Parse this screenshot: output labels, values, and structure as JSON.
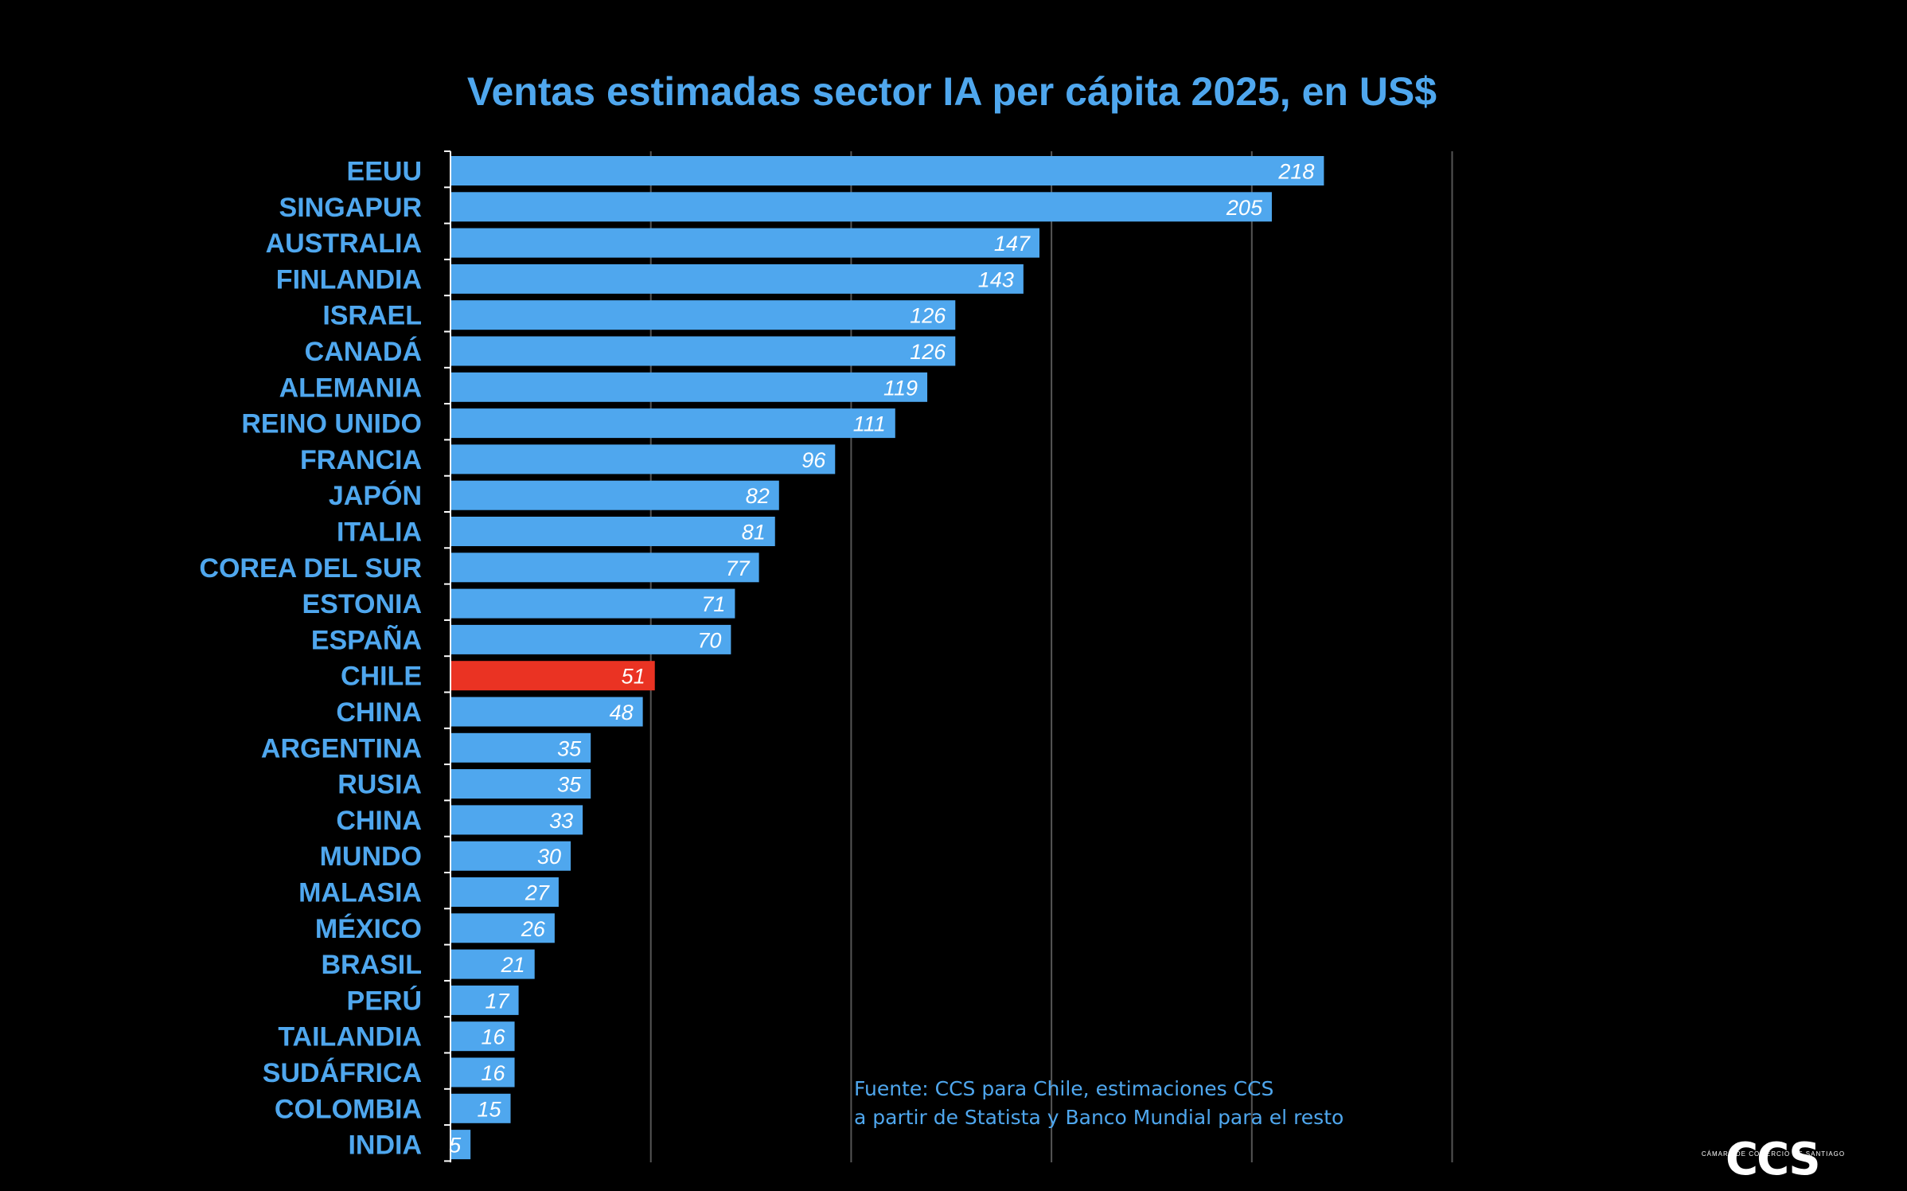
{
  "chart_data": {
    "type": "bar",
    "orientation": "horizontal",
    "title": "Ventas estimadas sector IA per cápita 2025, en US$",
    "categories": [
      "EEUU",
      "SINGAPUR",
      "AUSTRALIA",
      "FINLANDIA",
      "ISRAEL",
      "CANADÁ",
      "ALEMANIA",
      "REINO UNIDO",
      "FRANCIA",
      "JAPÓN",
      "ITALIA",
      "COREA DEL SUR",
      "ESTONIA",
      "ESPAÑA",
      "CHILE",
      "CHINA",
      "ARGENTINA",
      "RUSIA",
      "CHINA",
      "MUNDO",
      "MALASIA",
      "MÉXICO",
      "BRASIL",
      "PERÚ",
      "TAILANDIA",
      "SUDÁFRICA",
      "COLOMBIA",
      "INDIA"
    ],
    "values": [
      218,
      205,
      147,
      143,
      126,
      126,
      119,
      111,
      96,
      82,
      81,
      77,
      71,
      70,
      51,
      48,
      35,
      35,
      33,
      30,
      27,
      26,
      21,
      17,
      16,
      16,
      15,
      5
    ],
    "value_labels": [
      "218",
      "205",
      "147",
      "143",
      "126",
      "126",
      "119",
      "111",
      "96",
      "82",
      "81",
      "77",
      "71",
      "70",
      "51",
      "48",
      "35",
      "35",
      "33",
      "30",
      "27",
      "26",
      "21",
      "17",
      "16",
      "16",
      "15",
      "5"
    ],
    "highlight_index": 14,
    "xlim": [
      0,
      250
    ],
    "grid": true,
    "xaxis_tick_labels": false,
    "colors": {
      "bar": "#4FA7EE",
      "highlight": "#EA3323",
      "gridline": "#555555",
      "text": "#4FA7EE",
      "value_label": "#FFFFFF",
      "background": "#000000"
    }
  },
  "source": {
    "line1": "Fuente: CCS para Chile, estimaciones CCS",
    "line2": "a partir de Statista y Banco Mundial para el resto"
  },
  "logo": {
    "text": "CCS",
    "subtext": "CÁMARA DE COMERCIO DE SANTIAGO"
  }
}
